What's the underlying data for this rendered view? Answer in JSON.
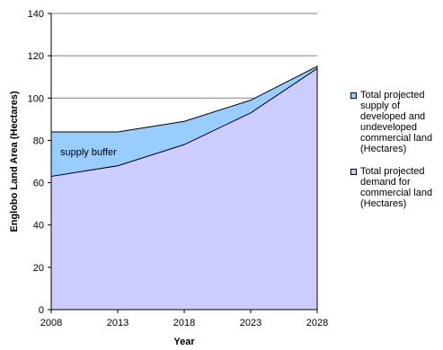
{
  "chart_data": {
    "type": "area",
    "x": [
      "2008",
      "2013",
      "2018",
      "2023",
      "2028"
    ],
    "series": [
      {
        "name": "Total projected supply of developed and undeveloped commercial land (Hectares)",
        "values": [
          84,
          84,
          89,
          99,
          115
        ],
        "color": "#99ccff"
      },
      {
        "name": "Total projected demand for commercial land (Hectares)",
        "values": [
          63,
          68,
          78,
          93,
          114
        ],
        "color": "#ccccff"
      }
    ],
    "xlabel": "Year",
    "ylabel": "Englobo Land Area (Hectares)",
    "ylim": [
      0,
      140
    ],
    "yticks": [
      0,
      20,
      40,
      60,
      80,
      100,
      120,
      140
    ],
    "annotation": "supply buffer",
    "grid": "horizontal",
    "legend_position": "right"
  }
}
